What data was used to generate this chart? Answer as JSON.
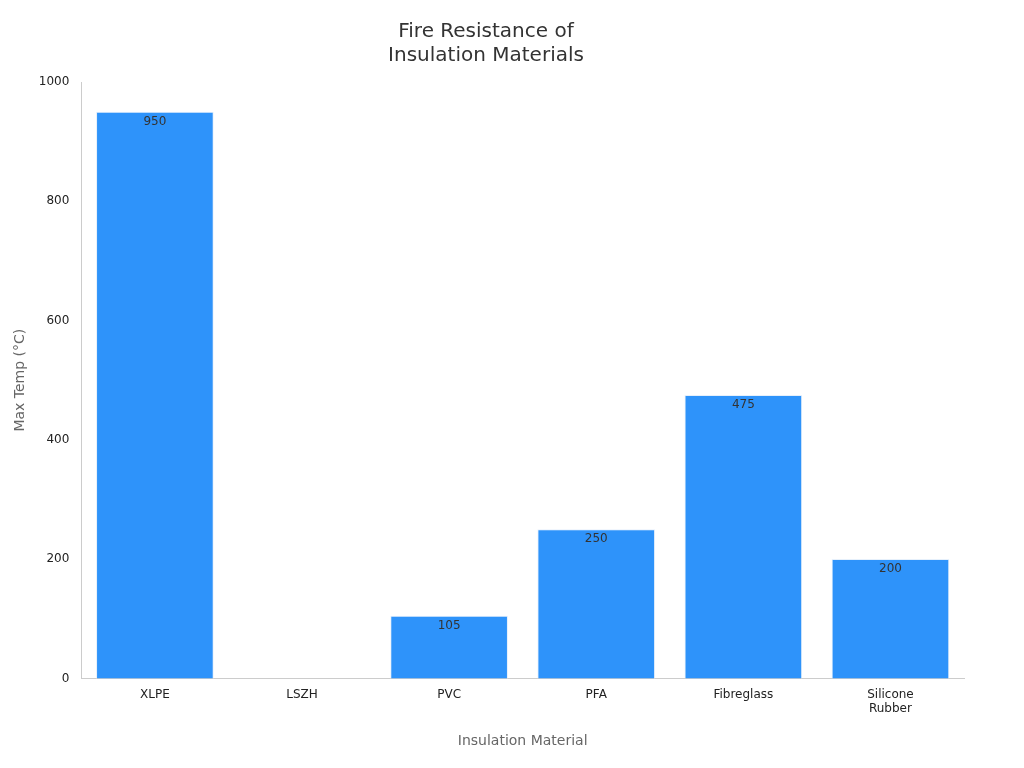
{
  "chart_data": {
    "type": "bar",
    "title": "Fire Resistance of\nInsulation Materials",
    "xlabel": "Insulation Material",
    "ylabel": "Max Temp (°C)",
    "categories": [
      "XLPE",
      "LSZH",
      "PVC",
      "PFA",
      "Fibreglass",
      "Silicone Rubber"
    ],
    "values": [
      950,
      null,
      105,
      250,
      475,
      200
    ],
    "color": "#2e93fa",
    "ylim": [
      0,
      1000
    ],
    "yticks": [
      0,
      200,
      400,
      600,
      800,
      1000
    ],
    "grid": false,
    "legend": false,
    "data_labels": true
  }
}
